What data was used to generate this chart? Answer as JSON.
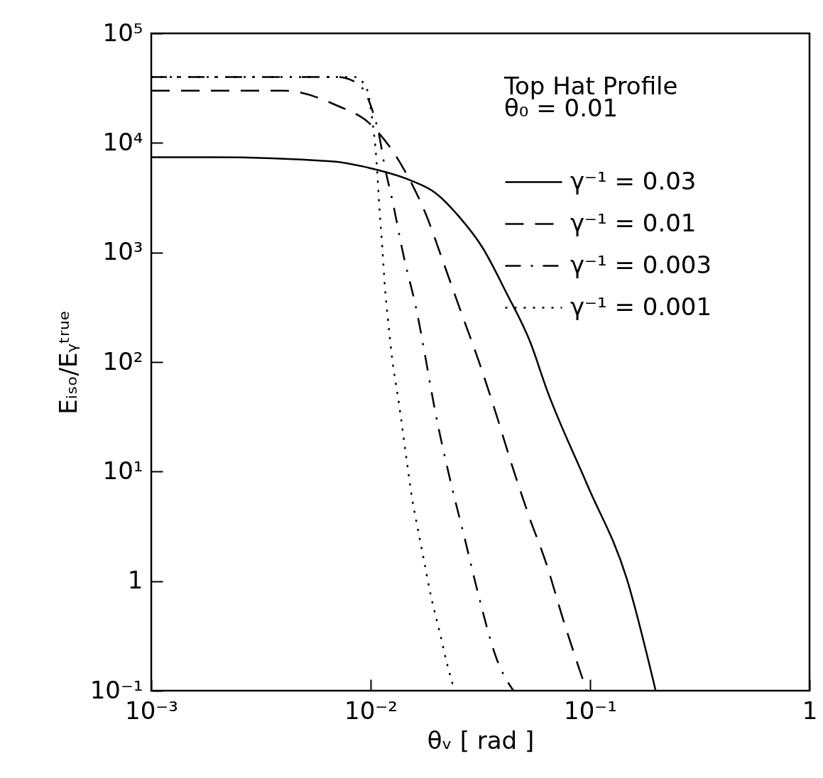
{
  "chart_data": {
    "type": "line",
    "xlabel": "θᵥ [ rad ]",
    "ylabel": "Eᵢₛₒ/Eᵧᵗʳᵘᵉ",
    "log": "xy",
    "grid": false,
    "legend": "top right",
    "marker": "none",
    "annotations": [
      "Top Hat Profile",
      "θ₀ = 0.01"
    ],
    "xlim": [
      0.001,
      1
    ],
    "ylim": [
      0.1,
      100000
    ],
    "xticks": [
      {
        "value": 0.001,
        "label": "10⁻³"
      },
      {
        "value": 0.01,
        "label": "10⁻²"
      },
      {
        "value": 0.1,
        "label": "10⁻¹"
      },
      1
    ],
    "yticks": [
      {
        "value": 0.1,
        "label": "10⁻¹"
      },
      1,
      {
        "value": 10,
        "label": "10¹"
      },
      {
        "value": 100,
        "label": "10²"
      },
      {
        "value": 1000,
        "label": "10³"
      },
      {
        "value": 10000,
        "label": "10⁴"
      },
      {
        "value": 100000,
        "label": "10⁵"
      }
    ],
    "series": [
      {
        "name": "γ⁻¹ = 0.03",
        "color": "#000000",
        "line_style": "solid",
        "x": [
          0.001,
          0.0019,
          0.0066,
          0.0099,
          0.015,
          0.0197,
          0.0254,
          0.0324,
          0.0415,
          0.0535,
          0.0635,
          0.097,
          0.147,
          0.199
        ],
        "values": [
          7400,
          7400,
          6800,
          5900,
          4600,
          3500,
          2100,
          1100,
          430,
          150,
          56,
          7.6,
          1.05,
          0.1
        ]
      },
      {
        "name": "γ⁻¹ = 0.01",
        "color": "#000000",
        "line_style": "dashed",
        "x": [
          0.001,
          0.004,
          0.007,
          0.0099,
          0.014,
          0.0179,
          0.0215,
          0.026,
          0.0313,
          0.0374,
          0.044,
          0.0527,
          0.0635,
          0.0748,
          0.0964
        ],
        "values": [
          30000,
          30000,
          22000,
          15000,
          6000,
          2200,
          800,
          275,
          98,
          33,
          11.5,
          3.9,
          1.4,
          0.47,
          0.1
        ]
      },
      {
        "name": "γ⁻¹ = 0.003",
        "color": "#000000",
        "line_style": "dashdot",
        "x": [
          0.001,
          0.007,
          0.0087,
          0.01,
          0.011,
          0.0115,
          0.0126,
          0.0141,
          0.016,
          0.0203,
          0.0232,
          0.0269,
          0.0305,
          0.0377,
          0.0447
        ],
        "values": [
          40000,
          40000,
          35000,
          22000,
          11000,
          6600,
          2900,
          950,
          330,
          26,
          7.9,
          2.4,
          0.85,
          0.19,
          0.1
        ]
      },
      {
        "name": "γ⁻¹ = 0.001",
        "color": "#000000",
        "line_style": "dotted",
        "x": [
          0.001,
          0.0073,
          0.0085,
          0.0096,
          0.0102,
          0.0106,
          0.011,
          0.0113,
          0.0116,
          0.012,
          0.0125,
          0.0135,
          0.0146,
          0.0154,
          0.0164,
          0.0176,
          0.0188,
          0.0205,
          0.0224,
          0.0241
        ],
        "values": [
          40000,
          40000,
          40000,
          31000,
          15500,
          7400,
          2300,
          1100,
          500,
          240,
          112,
          40,
          12.6,
          5.9,
          3.0,
          1.45,
          0.74,
          0.36,
          0.17,
          0.1
        ]
      }
    ]
  }
}
